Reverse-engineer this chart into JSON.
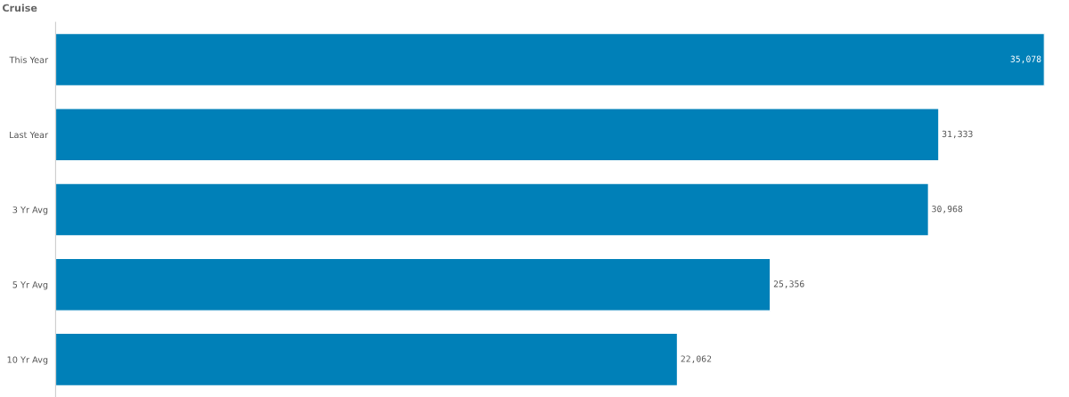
{
  "chart_data": {
    "type": "bar",
    "orientation": "horizontal",
    "title": "Cruise",
    "categories": [
      "This Year",
      "Last Year",
      "3 Yr Avg",
      "5 Yr Avg",
      "10 Yr Avg"
    ],
    "values": [
      35078,
      31333,
      30968,
      25356,
      22062
    ],
    "value_labels": [
      "35,078",
      "31,333",
      "30,968",
      "25,356",
      "22,062"
    ],
    "color": "#0080b8",
    "grid": false,
    "legend": false
  }
}
